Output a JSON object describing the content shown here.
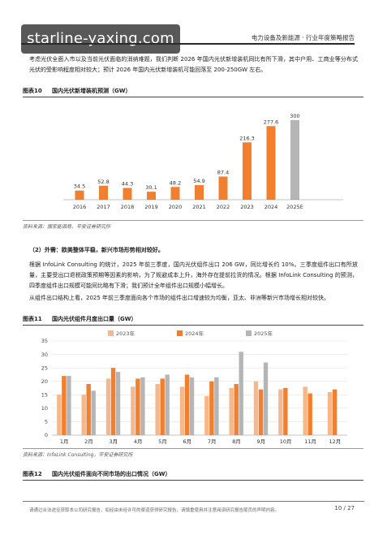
{
  "watermark": "starline-yaxing.com",
  "header": {
    "title": "电力设备及新能源 · 行业年度策略报告"
  },
  "paragraphs": {
    "intro": "考虑光伏全面入市以及当前光伏面临的消纳难题，我们判断 2026 年国内光伏新增装机同比有所下滑，其中户用、工商业等分布式光伏的受影响程度相对较大；预计 2026 年国内光伏新增装机可能回落至 200-250GW 左右。",
    "section_head": "（2）外需：欧美整体平稳，新兴市场形势相对较好。",
    "export": "根据 InfoLink Consulting 的统计，2025 年前三季度，国内光伏组件出口 206 GW，同比增长约 10%。三季度组件出口有所放量，主要受出口退税政策预期等因素的影响，为了规避成本上升，海外存在提前拉货的情况。根据 InfoLink Consulting 的预测，四季度组件出口规模可能同比略有下滑；我们预计全年组件出口规模小幅增长。",
    "structure": "从组件出口结构上看，2025 年前三季度面向各个市场的组件出口增速较为均衡，亚太、非洲等新兴市场增长相对较快。"
  },
  "figures": {
    "fig10": {
      "num": "图表10",
      "title": "国内光伏新增装机预测（GW）",
      "source": "资料来源：国家能源局，平安证券研究所"
    },
    "fig11": {
      "num": "图表11",
      "title": "国内光伏组件月度出口量（GW）",
      "source": "资料来源：InfoLink Consulting，平安证券研究所"
    },
    "fig12": {
      "num": "图表12",
      "title": "国内光伏组件面向不同市场的出口情况（GW）"
    }
  },
  "footer": {
    "disclaimer": "请通过合法途径获取本公司研究报告，如经由未经许可的渠道获得研究报告，请慎重使用并注意阅读研究报告尾页的声明内容。",
    "page": "10 / 27"
  },
  "colors": {
    "orange": "#f07f2f",
    "gray": "#b5b5b5",
    "light_orange": "#f6b88a"
  },
  "chart_data": [
    {
      "type": "bar",
      "categories": [
        "2016",
        "2017",
        "2018",
        "2019",
        "2020",
        "2021",
        "2022",
        "2023",
        "2024",
        "2025E"
      ],
      "values": [
        34.5,
        52.8,
        44.3,
        30.1,
        48.2,
        54.9,
        87.4,
        216.3,
        277.6,
        300
      ],
      "title": "",
      "ylim": [
        0,
        310
      ],
      "grid": false
    },
    {
      "type": "bar",
      "categories": [
        "1月",
        "2月",
        "3月",
        "4月",
        "5月",
        "6月",
        "7月",
        "8月",
        "9月",
        "10月",
        "11月",
        "12月"
      ],
      "series": [
        {
          "name": "2023年",
          "values": [
            15,
            15,
            21,
            18,
            19,
            18,
            14.5,
            17.5,
            20,
            17,
            18,
            16
          ]
        },
        {
          "name": "2024年",
          "values": [
            22,
            19,
            25,
            21,
            21,
            22.5,
            20,
            19,
            17,
            17.5,
            15.5,
            17
          ]
        },
        {
          "name": "2025年",
          "values": [
            22,
            16.5,
            23.5,
            21.5,
            22.5,
            21.5,
            21.5,
            31,
            27,
            null,
            null,
            null
          ]
        }
      ],
      "ylim": [
        0,
        35
      ],
      "yticks": [
        0,
        5,
        10,
        15,
        20,
        25,
        30,
        35
      ],
      "legend": "top",
      "grid": true
    }
  ]
}
